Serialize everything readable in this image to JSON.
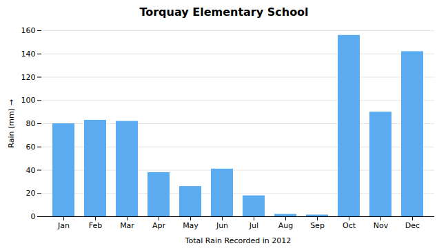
{
  "chart_data": {
    "type": "bar",
    "title": "Torquay Elementary School",
    "xlabel": "Total Rain Recorded in 2012",
    "ylabel": "Rain (mm)",
    "categories": [
      "Jan",
      "Feb",
      "Mar",
      "Apr",
      "May",
      "Jun",
      "Jul",
      "Aug",
      "Sep",
      "Oct",
      "Nov",
      "Dec"
    ],
    "values": [
      80,
      83,
      82,
      38,
      26,
      41,
      18,
      2,
      1.5,
      156,
      90,
      142
    ],
    "color": "#5aabf0",
    "ylim": [
      0,
      160
    ],
    "yticks": [
      0,
      20,
      40,
      60,
      80,
      100,
      120,
      140,
      160
    ],
    "grid": true
  }
}
